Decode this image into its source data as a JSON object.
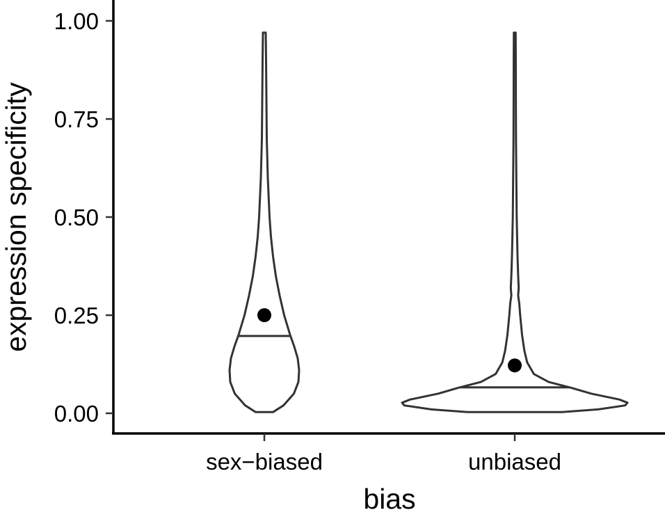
{
  "chart_data": {
    "type": "violin",
    "xlabel": "bias",
    "ylabel": "expression specificity",
    "ylim": [
      0,
      1
    ],
    "y_ticks": [
      "0.00",
      "0.25",
      "0.50",
      "0.75",
      "1.00"
    ],
    "y_tick_values": [
      0,
      0.25,
      0.5,
      0.75,
      1.0
    ],
    "categories": [
      "sex−biased",
      "unbiased"
    ],
    "groups": [
      {
        "name": "sex−biased",
        "median": 0.197,
        "mean": 0.25,
        "min": 0.003,
        "max": 0.97,
        "density": [
          [
            0.003,
            0.25
          ],
          [
            0.02,
            0.55
          ],
          [
            0.05,
            0.85
          ],
          [
            0.08,
            0.98
          ],
          [
            0.11,
            1.0
          ],
          [
            0.14,
            0.96
          ],
          [
            0.17,
            0.86
          ],
          [
            0.2,
            0.74
          ],
          [
            0.25,
            0.57
          ],
          [
            0.3,
            0.44
          ],
          [
            0.35,
            0.33
          ],
          [
            0.4,
            0.25
          ],
          [
            0.45,
            0.19
          ],
          [
            0.5,
            0.15
          ],
          [
            0.6,
            0.1
          ],
          [
            0.7,
            0.07
          ],
          [
            0.8,
            0.06
          ],
          [
            0.9,
            0.05
          ],
          [
            0.97,
            0.04
          ]
        ]
      },
      {
        "name": "unbiased",
        "median": 0.066,
        "mean": 0.122,
        "min": 0.003,
        "max": 0.97,
        "density": [
          [
            0.003,
            0.42
          ],
          [
            0.01,
            0.74
          ],
          [
            0.02,
            0.98
          ],
          [
            0.027,
            1.0
          ],
          [
            0.035,
            0.93
          ],
          [
            0.05,
            0.68
          ],
          [
            0.065,
            0.5
          ],
          [
            0.08,
            0.3
          ],
          [
            0.1,
            0.17
          ],
          [
            0.13,
            0.11
          ],
          [
            0.16,
            0.085
          ],
          [
            0.2,
            0.065
          ],
          [
            0.25,
            0.048
          ],
          [
            0.28,
            0.04
          ],
          [
            0.3,
            0.03
          ],
          [
            0.32,
            0.035
          ],
          [
            0.35,
            0.03
          ],
          [
            0.4,
            0.025
          ],
          [
            0.5,
            0.017
          ],
          [
            0.6,
            0.014
          ],
          [
            0.7,
            0.011
          ],
          [
            0.8,
            0.01
          ],
          [
            0.9,
            0.009
          ],
          [
            0.97,
            0.008
          ]
        ]
      }
    ],
    "grid": false,
    "legend": "none"
  }
}
